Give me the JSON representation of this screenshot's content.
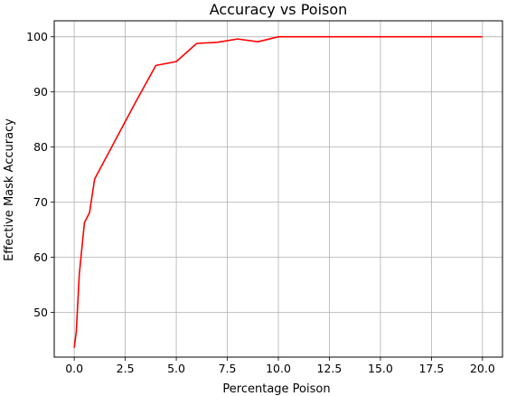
{
  "chart_data": {
    "type": "line",
    "title": "Accuracy vs Poison",
    "xlabel": "Percentage Poison",
    "ylabel": "Effective Mask Accuracy",
    "xlim": [
      -0.98,
      20.98
    ],
    "ylim": [
      41.9,
      102.9
    ],
    "xticks": [
      0.0,
      2.5,
      5.0,
      7.5,
      10.0,
      12.5,
      15.0,
      17.5,
      20.0
    ],
    "xtick_labels": [
      "0.0",
      "2.5",
      "5.0",
      "7.5",
      "10.0",
      "12.5",
      "15.0",
      "17.5",
      "20.0"
    ],
    "yticks": [
      50,
      60,
      70,
      80,
      90,
      100
    ],
    "ytick_labels": [
      "50",
      "60",
      "70",
      "80",
      "90",
      "100"
    ],
    "grid": true,
    "series": [
      {
        "color": "#ff0000",
        "x": [
          0.0,
          0.1,
          0.25,
          0.5,
          0.75,
          1.0,
          3.0,
          4.0,
          5.0,
          6.0,
          7.0,
          8.0,
          9.0,
          10.0,
          20.0
        ],
        "y": [
          43.6,
          46.5,
          57.0,
          66.3,
          68.1,
          74.2,
          88.1,
          94.8,
          95.5,
          98.8,
          99.0,
          99.6,
          99.1,
          100.0,
          100.0
        ]
      }
    ]
  }
}
